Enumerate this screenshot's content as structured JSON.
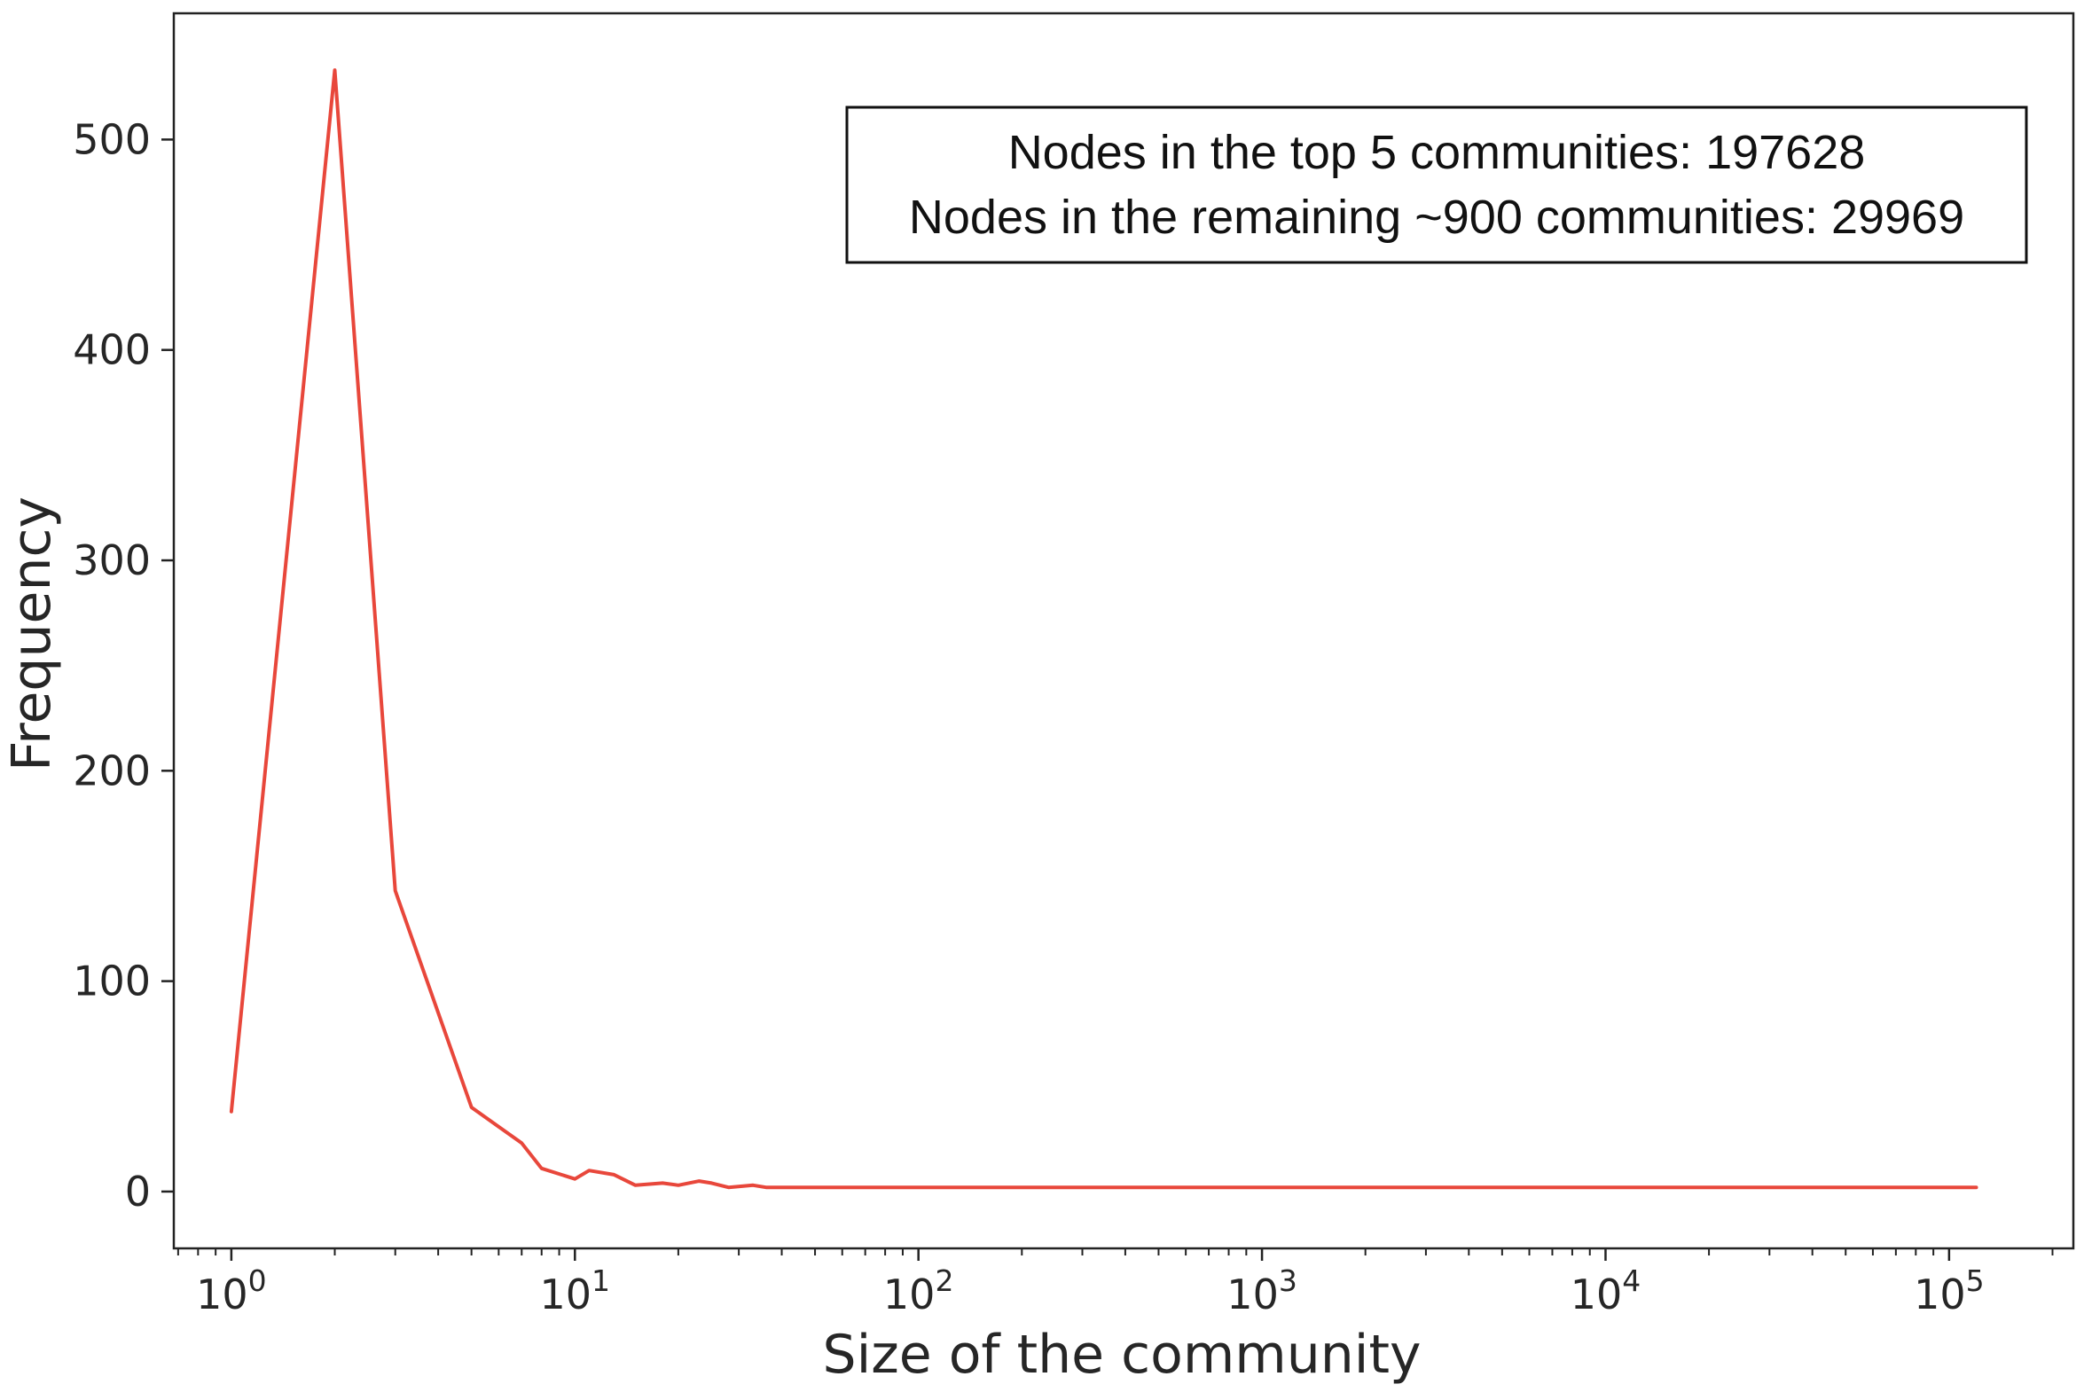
{
  "chart_data": {
    "type": "line",
    "title": "",
    "xlabel": "Size of the community",
    "ylabel": "Frequency",
    "xscale": "log",
    "xlim": [
      0.68,
      230000
    ],
    "ylim": [
      -27,
      560
    ],
    "grid": false,
    "x_ticks": [
      {
        "value": 1,
        "base": "10",
        "exp": "0"
      },
      {
        "value": 10,
        "base": "10",
        "exp": "1"
      },
      {
        "value": 100,
        "base": "10",
        "exp": "2"
      },
      {
        "value": 1000,
        "base": "10",
        "exp": "3"
      },
      {
        "value": 10000,
        "base": "10",
        "exp": "4"
      },
      {
        "value": 100000,
        "base": "10",
        "exp": "5"
      }
    ],
    "y_ticks": [
      {
        "value": 0,
        "label": "0"
      },
      {
        "value": 100,
        "label": "100"
      },
      {
        "value": 200,
        "label": "200"
      },
      {
        "value": 300,
        "label": "300"
      },
      {
        "value": 400,
        "label": "400"
      },
      {
        "value": 500,
        "label": "500"
      }
    ],
    "series": [
      {
        "color": "#e8473b",
        "x": [
          1,
          2,
          3,
          5,
          7,
          8,
          10,
          11,
          13,
          15,
          18,
          20,
          23,
          25,
          28,
          33,
          36,
          50,
          100,
          1000,
          10000,
          120000
        ],
        "y": [
          38,
          533,
          143,
          40,
          23,
          11,
          6,
          10,
          8,
          3,
          4,
          3,
          5,
          4,
          2,
          3,
          2,
          2,
          2,
          2,
          2,
          2
        ]
      }
    ],
    "annotation": {
      "lines": [
        "Nodes in the top 5 communities: 197628",
        "Nodes in the remaining ~900 communities: 29969"
      ],
      "placement": "top-right"
    }
  }
}
